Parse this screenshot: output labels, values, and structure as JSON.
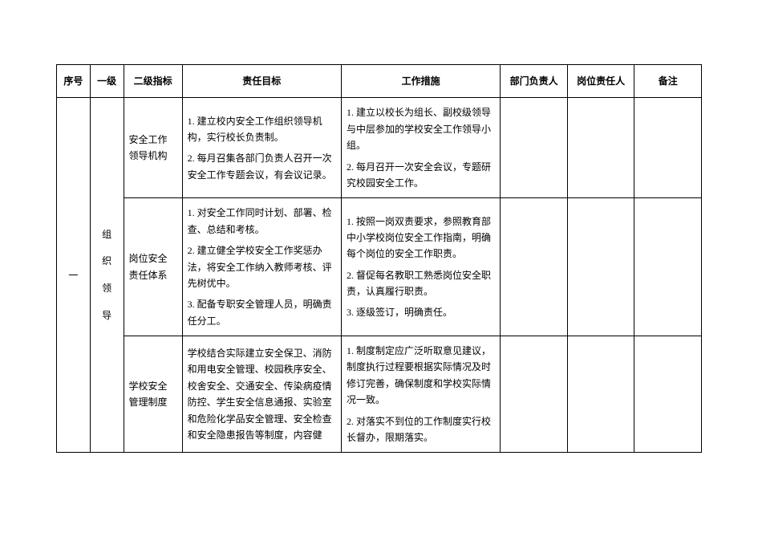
{
  "headers": {
    "seq": "序号",
    "level1": "一级",
    "level2": "二级指标",
    "goal": "责任目标",
    "measure": "工作措施",
    "dept": "部门负责人",
    "post": "岗位责任人",
    "remark": "备注"
  },
  "row_seq": "一",
  "row_level1_lines": [
    "组",
    "织",
    "领",
    "导"
  ],
  "sections": [
    {
      "level2": "安全工作\n领导机构",
      "goals": [
        "1. 建立校内安全工作组织领导机构，实行校长负责制。",
        "2. 每月召集各部门负责人召开一次安全工作专题会议，有会议记录。"
      ],
      "measures": [
        "1. 建立以校长为组长、副校级领导与中层参加的学校安全工作领导小组。",
        "2. 每月召开一次安全会议，专题研究校园安全工作。"
      ]
    },
    {
      "level2": "岗位安全\n责任体系",
      "goals": [
        "1. 对安全工作同时计划、部署、检查、总结和考核。",
        "2. 建立健全学校安全工作奖惩办法，将安全工作纳入教师考核、评先树优中。",
        "3.  配备专职安全管理人员，明确责任分工。"
      ],
      "measures": [
        "1. 按照一岗双责要求，参照教育部中小学校岗位安全工作指南，明确每个岗位的安全工作职责。",
        "2. 督促每名教职工熟悉岗位安全职责，认真履行职责。",
        "3. 逐级签订，明确责任。"
      ]
    },
    {
      "level2": "学校安全\n管理制度",
      "goals": [
        "学校结合实际建立安全保卫、消防和用电安全管理、校园秩序安全、校舍安全、交通安全、传染病疫情防控、学生安全信息通报、实验室和危险化学品安全管理、安全检查和安全隐患报告等制度，内容健"
      ],
      "measures": [
        "1. 制度制定应广泛听取意见建议，制度执行过程要根据实际情况及时修订完善，确保制度和学校实际情况一致。",
        "2. 对落实不到位的工作制度实行校长督办，限期落实。"
      ]
    }
  ],
  "style": {
    "font_family": "SimSun",
    "font_size_pt": 10,
    "border_color": "#000000",
    "background_color": "#ffffff",
    "text_color": "#000000"
  }
}
